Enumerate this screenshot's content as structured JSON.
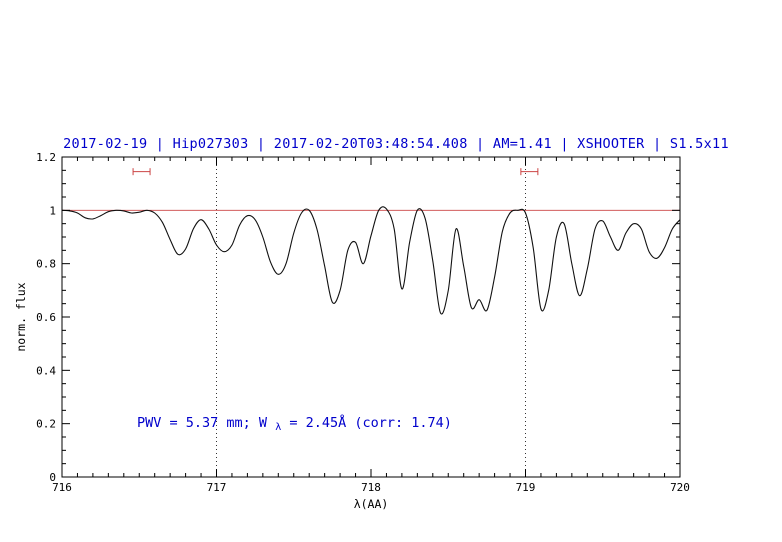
{
  "header": {
    "title": "2017-02-19 | Hip027303 | 2017-02-20T03:48:54.408 | AM=1.41 | XSHOOTER | S1.5x11"
  },
  "annotation": {
    "pre": "PWV = 5.37 mm; W",
    "sub": "λ",
    "post": " = 2.45Å (corr: 1.74)"
  },
  "chart_data": {
    "type": "line",
    "title": "2017-02-19 | Hip027303 | 2017-02-20T03:48:54.408 | AM=1.41 | XSHOOTER | S1.5x11",
    "xlabel": "λ(AA)",
    "ylabel": "norm. flux",
    "xlim": [
      716,
      720
    ],
    "ylim": [
      0,
      1.2
    ],
    "x_ticks": [
      716,
      717,
      718,
      719,
      720
    ],
    "x_tick_labels": [
      "716",
      "717",
      "718",
      "719",
      "720"
    ],
    "x_minor_step": 0.1,
    "y_ticks": [
      0,
      0.2,
      0.4,
      0.6,
      0.8,
      1,
      1.2
    ],
    "y_tick_labels": [
      "0",
      "0.2",
      "0.4",
      "0.6",
      "0.8",
      "1",
      "1.2"
    ],
    "y_minor_step": 0.05,
    "grid": "off",
    "dotted_vlines": [
      717,
      719
    ],
    "continuum_line_y": 1.0,
    "range_markers": [
      {
        "x1": 716.46,
        "x2": 716.57,
        "y": 1.145
      },
      {
        "x1": 718.97,
        "x2": 719.08,
        "y": 1.145
      }
    ],
    "colors": {
      "title": "#0000cc",
      "annotation": "#0000cc",
      "continuum": "#cc4444",
      "marker": "#cc4444",
      "spectrum": "#111111",
      "frame": "#000000",
      "dotted": "#000000"
    },
    "series": [
      {
        "name": "telluric-spectrum",
        "x": [
          716.0,
          716.05,
          716.1,
          716.15,
          716.2,
          716.25,
          716.3,
          716.35,
          716.4,
          716.45,
          716.5,
          716.55,
          716.6,
          716.65,
          716.7,
          716.75,
          716.8,
          716.85,
          716.9,
          716.95,
          717.0,
          717.05,
          717.1,
          717.15,
          717.2,
          717.25,
          717.3,
          717.35,
          717.4,
          717.45,
          717.5,
          717.55,
          717.6,
          717.65,
          717.7,
          717.75,
          717.8,
          717.85,
          717.9,
          717.95,
          718.0,
          718.05,
          718.1,
          718.15,
          718.2,
          718.25,
          718.3,
          718.35,
          718.4,
          718.45,
          718.5,
          718.55,
          718.6,
          718.65,
          718.7,
          718.75,
          718.8,
          718.85,
          718.9,
          718.95,
          719.0,
          719.05,
          719.1,
          719.15,
          719.2,
          719.25,
          719.3,
          719.35,
          719.4,
          719.45,
          719.5,
          719.55,
          719.6,
          719.65,
          719.7,
          719.75,
          719.8,
          719.85,
          719.9,
          719.95,
          720.0
        ],
        "y": [
          1.0,
          0.998,
          0.99,
          0.972,
          0.968,
          0.98,
          0.995,
          1.0,
          0.998,
          0.99,
          0.993,
          1.0,
          0.99,
          0.955,
          0.89,
          0.835,
          0.855,
          0.93,
          0.965,
          0.93,
          0.87,
          0.845,
          0.87,
          0.945,
          0.98,
          0.965,
          0.9,
          0.805,
          0.76,
          0.8,
          0.915,
          0.99,
          1.0,
          0.93,
          0.79,
          0.655,
          0.7,
          0.85,
          0.88,
          0.8,
          0.905,
          1.0,
          1.005,
          0.93,
          0.705,
          0.88,
          1.0,
          0.97,
          0.81,
          0.615,
          0.7,
          0.93,
          0.79,
          0.635,
          0.665,
          0.625,
          0.75,
          0.92,
          0.99,
          1.0,
          0.99,
          0.86,
          0.63,
          0.7,
          0.9,
          0.95,
          0.8,
          0.68,
          0.78,
          0.93,
          0.96,
          0.9,
          0.85,
          0.915,
          0.95,
          0.93,
          0.845,
          0.82,
          0.86,
          0.93,
          0.965
        ]
      }
    ]
  }
}
